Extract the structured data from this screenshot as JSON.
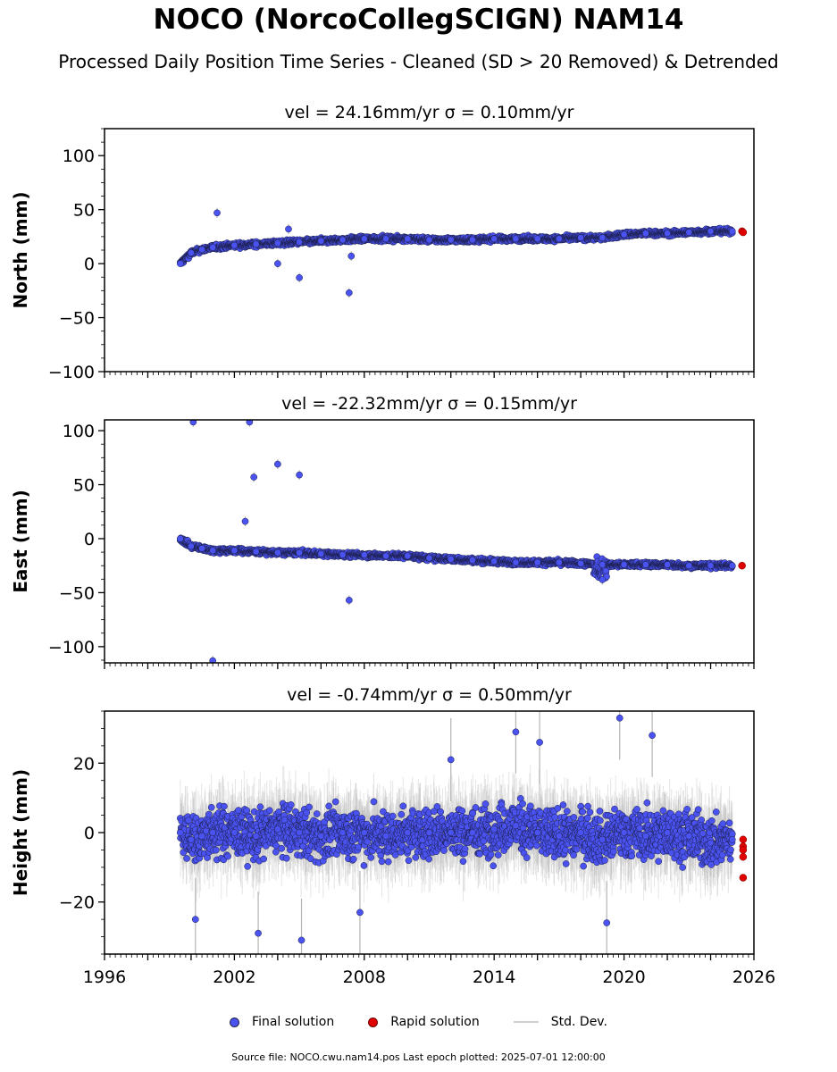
{
  "header": {
    "title": "NOCO (NorcoCollegSCIGN) NAM14",
    "subtitle": "Processed Daily Position Time Series - Cleaned (SD > 20 Removed) & Detrended"
  },
  "legend": {
    "final": "Final solution",
    "rapid": "Rapid solution",
    "std": "Std. Dev."
  },
  "footer": "Source file: NOCO.cwu.nam14.pos  Last epoch plotted: 2025-07-01 12:00:00",
  "colors": {
    "final": "#4a52f0",
    "rapid": "#e00000",
    "std": "#b4b4b4"
  },
  "chart_data": [
    {
      "type": "scatter",
      "title": "vel = 24.16mm/yr   σ = 0.10mm/yr",
      "ylabel": "North (mm)",
      "xlim": [
        1996,
        2026
      ],
      "ylim": [
        -100,
        125
      ],
      "yticks": [
        -100,
        -50,
        0,
        50,
        100
      ],
      "xticks": [],
      "x": [
        1999.5,
        2000.0,
        2000.5,
        2001.0,
        2002.0,
        2003.0,
        2004.0,
        2005.0,
        2006.0,
        2007.0,
        2008.0,
        2009.0,
        2010.0,
        2011.0,
        2012.0,
        2013.0,
        2014.0,
        2015.0,
        2016.0,
        2017.0,
        2018.0,
        2019.0,
        2020.0,
        2021.0,
        2022.0,
        2023.0,
        2024.0,
        2025.0
      ],
      "y": [
        0,
        10,
        13,
        15,
        17,
        18,
        19,
        20,
        21,
        22,
        23,
        23,
        23,
        22,
        22,
        22,
        23,
        23,
        23,
        23,
        24,
        24,
        27,
        28,
        28,
        29,
        30,
        30
      ],
      "outliers": [
        [
          2001.2,
          47
        ],
        [
          2004.0,
          0
        ],
        [
          2005.0,
          -13
        ],
        [
          2007.3,
          -27
        ],
        [
          2007.4,
          7
        ],
        [
          2004.5,
          32
        ]
      ],
      "rapid": {
        "x": [
          2025.45,
          2025.5
        ],
        "y": [
          30,
          29
        ]
      }
    },
    {
      "type": "scatter",
      "title": "vel = -22.32mm/yr   σ = 0.15mm/yr",
      "ylabel": "East (mm)",
      "xlim": [
        1996,
        2026
      ],
      "ylim": [
        -115,
        110
      ],
      "yticks": [
        -100,
        -50,
        0,
        50,
        100
      ],
      "xticks": [],
      "x": [
        1999.5,
        2000.0,
        2000.5,
        2001.0,
        2002.0,
        2003.0,
        2004.0,
        2005.0,
        2006.0,
        2007.0,
        2008.0,
        2009.0,
        2010.0,
        2011.0,
        2012.0,
        2013.0,
        2014.0,
        2015.0,
        2016.0,
        2017.0,
        2018.0,
        2019.0,
        2020.0,
        2021.0,
        2022.0,
        2023.0,
        2024.0,
        2025.0
      ],
      "y": [
        0,
        -7,
        -9,
        -11,
        -11,
        -12,
        -13,
        -13,
        -14,
        -15,
        -15,
        -16,
        -16,
        -18,
        -19,
        -20,
        -21,
        -22,
        -22,
        -22,
        -23,
        -24,
        -24,
        -24,
        -24,
        -25,
        -25,
        -25
      ],
      "outliers": [
        [
          2000.1,
          108
        ],
        [
          2002.7,
          108
        ],
        [
          2002.9,
          57
        ],
        [
          2004.0,
          69
        ],
        [
          2005.0,
          59
        ],
        [
          2002.5,
          16
        ],
        [
          2007.3,
          -57
        ],
        [
          2001.0,
          -113
        ],
        [
          2019.0,
          -38
        ]
      ],
      "rapid": {
        "x": [
          2025.45
        ],
        "y": [
          -25
        ]
      }
    },
    {
      "type": "scatter",
      "title": "vel = -0.74mm/yr   σ = 0.50mm/yr",
      "ylabel": "Height (mm)",
      "xlabel": "",
      "xlim": [
        1996,
        2026
      ],
      "ylim": [
        -35,
        35
      ],
      "yticks": [
        -20,
        0,
        20
      ],
      "xticks": [
        "1996",
        "2002",
        "2008",
        "2014",
        "2020",
        "2026"
      ],
      "x": [
        1999.5,
        2000.0,
        2000.5,
        2001.0,
        2002.0,
        2003.0,
        2004.0,
        2005.0,
        2006.0,
        2007.0,
        2008.0,
        2009.0,
        2010.0,
        2011.0,
        2012.0,
        2013.0,
        2014.0,
        2015.0,
        2016.0,
        2017.0,
        2018.0,
        2019.0,
        2020.0,
        2021.0,
        2022.0,
        2023.0,
        2024.0,
        2025.0
      ],
      "y": [
        0,
        -2,
        -1,
        0,
        0,
        -1,
        1,
        0,
        -1,
        0,
        0,
        -1,
        0,
        0,
        0,
        0,
        1,
        2,
        0,
        -1,
        0,
        -2,
        0,
        -1,
        0,
        -1,
        -3,
        -2
      ],
      "outliers": [
        [
          2019.8,
          33
        ],
        [
          2015.0,
          29
        ],
        [
          2021.3,
          28
        ],
        [
          2003.1,
          -29
        ],
        [
          2005.1,
          -31
        ],
        [
          2019.2,
          -26
        ],
        [
          2007.8,
          -23
        ],
        [
          2000.2,
          -25
        ],
        [
          2012.0,
          21
        ],
        [
          2016.1,
          26
        ]
      ],
      "rapid": {
        "x": [
          2025.5,
          2025.5,
          2025.5,
          2025.5,
          2025.5
        ],
        "y": [
          -2,
          -4,
          -5,
          -7,
          -13
        ]
      }
    }
  ]
}
